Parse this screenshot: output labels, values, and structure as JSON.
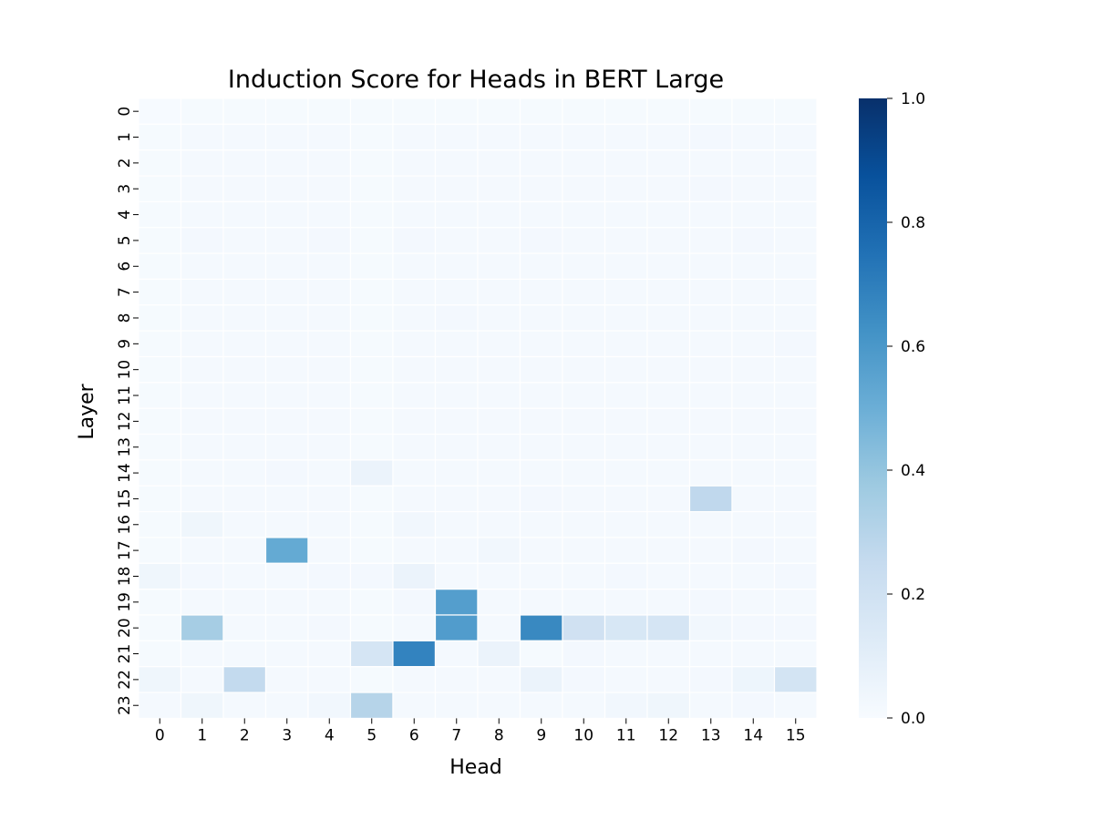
{
  "chart_data": {
    "type": "heatmap",
    "title": "Induction Score for Heads in BERT Large",
    "xlabel": "Head",
    "ylabel": "Layer",
    "x_categories": [
      "0",
      "1",
      "2",
      "3",
      "4",
      "5",
      "6",
      "7",
      "8",
      "9",
      "10",
      "11",
      "12",
      "13",
      "14",
      "15"
    ],
    "y_categories": [
      "0",
      "1",
      "2",
      "3",
      "4",
      "5",
      "6",
      "7",
      "8",
      "9",
      "10",
      "11",
      "12",
      "13",
      "14",
      "15",
      "16",
      "17",
      "18",
      "19",
      "20",
      "21",
      "22",
      "23"
    ],
    "vmin": 0.0,
    "vmax": 1.0,
    "colormap": "Blues",
    "colorbar_ticks": [
      "0.0",
      "0.2",
      "0.4",
      "0.6",
      "0.8",
      "1.0"
    ],
    "values": [
      [
        0.005,
        0.01,
        0.01,
        0.01,
        0.01,
        0.01,
        0.01,
        0.01,
        0.01,
        0.01,
        0.01,
        0.01,
        0.01,
        0.01,
        0.01,
        0.01
      ],
      [
        0.01,
        0.015,
        0.015,
        0.015,
        0.015,
        0.01,
        0.015,
        0.015,
        0.015,
        0.015,
        0.015,
        0.015,
        0.015,
        0.02,
        0.015,
        0.015
      ],
      [
        0.01,
        0.015,
        0.015,
        0.015,
        0.015,
        0.01,
        0.015,
        0.015,
        0.015,
        0.015,
        0.015,
        0.015,
        0.015,
        0.015,
        0.015,
        0.015
      ],
      [
        0.01,
        0.015,
        0.015,
        0.015,
        0.015,
        0.01,
        0.015,
        0.015,
        0.015,
        0.015,
        0.015,
        0.015,
        0.015,
        0.02,
        0.015,
        0.015
      ],
      [
        0.01,
        0.015,
        0.015,
        0.015,
        0.015,
        0.01,
        0.015,
        0.015,
        0.015,
        0.015,
        0.015,
        0.015,
        0.015,
        0.015,
        0.015,
        0.015
      ],
      [
        0.01,
        0.02,
        0.015,
        0.015,
        0.02,
        0.01,
        0.02,
        0.015,
        0.015,
        0.02,
        0.015,
        0.015,
        0.015,
        0.015,
        0.02,
        0.015
      ],
      [
        0.01,
        0.015,
        0.015,
        0.015,
        0.015,
        0.01,
        0.015,
        0.015,
        0.015,
        0.015,
        0.015,
        0.015,
        0.015,
        0.015,
        0.015,
        0.015
      ],
      [
        0.01,
        0.015,
        0.015,
        0.015,
        0.015,
        0.01,
        0.015,
        0.015,
        0.015,
        0.015,
        0.015,
        0.015,
        0.015,
        0.015,
        0.015,
        0.015
      ],
      [
        0.01,
        0.015,
        0.015,
        0.015,
        0.015,
        0.01,
        0.015,
        0.02,
        0.015,
        0.015,
        0.015,
        0.015,
        0.015,
        0.015,
        0.015,
        0.015
      ],
      [
        0.01,
        0.015,
        0.015,
        0.015,
        0.015,
        0.01,
        0.015,
        0.015,
        0.015,
        0.015,
        0.015,
        0.015,
        0.015,
        0.015,
        0.015,
        0.02
      ],
      [
        0.01,
        0.015,
        0.015,
        0.015,
        0.015,
        0.01,
        0.015,
        0.015,
        0.015,
        0.015,
        0.015,
        0.015,
        0.015,
        0.015,
        0.015,
        0.015
      ],
      [
        0.01,
        0.015,
        0.015,
        0.015,
        0.015,
        0.01,
        0.015,
        0.015,
        0.015,
        0.015,
        0.015,
        0.015,
        0.015,
        0.015,
        0.015,
        0.015
      ],
      [
        0.01,
        0.015,
        0.015,
        0.015,
        0.015,
        0.01,
        0.015,
        0.015,
        0.015,
        0.015,
        0.015,
        0.015,
        0.015,
        0.015,
        0.015,
        0.015
      ],
      [
        0.01,
        0.015,
        0.015,
        0.015,
        0.015,
        0.01,
        0.015,
        0.015,
        0.015,
        0.015,
        0.015,
        0.015,
        0.015,
        0.015,
        0.015,
        0.015
      ],
      [
        0.01,
        0.015,
        0.015,
        0.02,
        0.015,
        0.06,
        0.015,
        0.015,
        0.015,
        0.015,
        0.015,
        0.015,
        0.015,
        0.015,
        0.015,
        0.015
      ],
      [
        0.01,
        0.015,
        0.015,
        0.015,
        0.015,
        0.01,
        0.015,
        0.015,
        0.015,
        0.02,
        0.015,
        0.015,
        0.015,
        0.27,
        0.015,
        0.015
      ],
      [
        0.01,
        0.04,
        0.015,
        0.015,
        0.015,
        0.01,
        0.03,
        0.015,
        0.015,
        0.015,
        0.015,
        0.015,
        0.015,
        0.015,
        0.015,
        0.015
      ],
      [
        0.01,
        0.015,
        0.015,
        0.52,
        0.015,
        0.01,
        0.015,
        0.015,
        0.03,
        0.015,
        0.015,
        0.015,
        0.015,
        0.015,
        0.02,
        0.015
      ],
      [
        0.04,
        0.02,
        0.015,
        0.015,
        0.02,
        0.02,
        0.06,
        0.015,
        0.015,
        0.015,
        0.015,
        0.02,
        0.015,
        0.015,
        0.015,
        0.02
      ],
      [
        0.01,
        0.015,
        0.015,
        0.015,
        0.015,
        0.01,
        0.02,
        0.57,
        0.015,
        0.015,
        0.015,
        0.015,
        0.015,
        0.02,
        0.015,
        0.015
      ],
      [
        0.01,
        0.35,
        0.015,
        0.015,
        0.02,
        0.01,
        0.015,
        0.58,
        0.015,
        0.66,
        0.2,
        0.16,
        0.17,
        0.03,
        0.02,
        0.02
      ],
      [
        0.01,
        0.015,
        0.015,
        0.015,
        0.015,
        0.17,
        0.68,
        0.015,
        0.06,
        0.01,
        0.02,
        0.015,
        0.015,
        0.015,
        0.015,
        0.015
      ],
      [
        0.04,
        0.015,
        0.26,
        0.015,
        0.015,
        0.01,
        0.015,
        0.015,
        0.015,
        0.06,
        0.02,
        0.015,
        0.015,
        0.02,
        0.05,
        0.18
      ],
      [
        0.015,
        0.04,
        0.015,
        0.015,
        0.03,
        0.3,
        0.015,
        0.015,
        0.015,
        0.015,
        0.015,
        0.03,
        0.04,
        0.015,
        0.02,
        0.015
      ]
    ]
  }
}
